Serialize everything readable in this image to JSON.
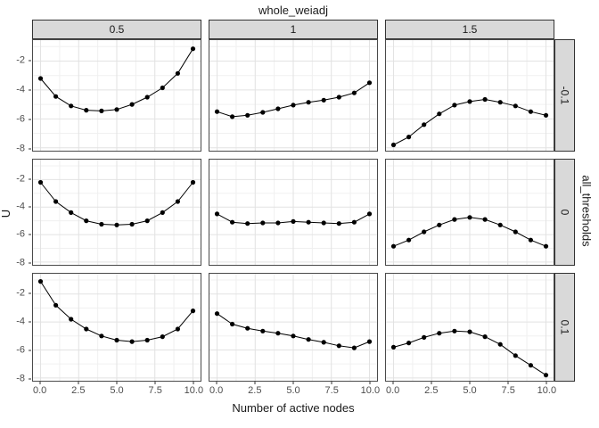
{
  "chart_data": {
    "type": "line",
    "title": "whole_weiadj",
    "xlabel": "Number of active nodes",
    "ylabel": "U",
    "facet": {
      "col_var": "whole_weiadj",
      "col_levels": [
        "0.5",
        "1",
        "1.5"
      ],
      "row_var": "all_thresholds",
      "row_levels": [
        "-0.1",
        "0",
        "0.1"
      ]
    },
    "x": [
      0,
      1,
      2,
      3,
      4,
      5,
      6,
      7,
      8,
      9,
      10
    ],
    "panels": [
      {
        "row": "-0.1",
        "col": "0.5",
        "y": [
          -3.2,
          -4.45,
          -5.1,
          -5.4,
          -5.45,
          -5.35,
          -5.0,
          -4.5,
          -3.85,
          -2.85,
          -1.15
        ]
      },
      {
        "row": "-0.1",
        "col": "1",
        "y": [
          -5.5,
          -5.85,
          -5.75,
          -5.55,
          -5.3,
          -5.05,
          -4.85,
          -4.7,
          -4.5,
          -4.2,
          -3.5
        ]
      },
      {
        "row": "-0.1",
        "col": "1.5",
        "y": [
          -7.8,
          -7.25,
          -6.4,
          -5.65,
          -5.05,
          -4.8,
          -4.65,
          -4.85,
          -5.1,
          -5.5,
          -5.75
        ]
      },
      {
        "row": "0",
        "col": "0.5",
        "y": [
          -2.2,
          -3.6,
          -4.4,
          -5.0,
          -5.25,
          -5.3,
          -5.25,
          -5.0,
          -4.4,
          -3.6,
          -2.2
        ]
      },
      {
        "row": "0",
        "col": "1",
        "y": [
          -4.5,
          -5.1,
          -5.2,
          -5.15,
          -5.15,
          -5.05,
          -5.1,
          -5.15,
          -5.2,
          -5.1,
          -4.5
        ]
      },
      {
        "row": "0",
        "col": "1.5",
        "y": [
          -6.85,
          -6.4,
          -5.8,
          -5.3,
          -4.9,
          -4.75,
          -4.9,
          -5.3,
          -5.8,
          -6.4,
          -6.85
        ]
      },
      {
        "row": "0.1",
        "col": "0.5",
        "y": [
          -1.1,
          -2.8,
          -3.8,
          -4.5,
          -5.0,
          -5.3,
          -5.4,
          -5.3,
          -5.05,
          -4.5,
          -3.2
        ]
      },
      {
        "row": "0.1",
        "col": "1",
        "y": [
          -3.4,
          -4.15,
          -4.45,
          -4.65,
          -4.8,
          -5.0,
          -5.25,
          -5.45,
          -5.7,
          -5.85,
          -5.4
        ]
      },
      {
        "row": "0.1",
        "col": "1.5",
        "y": [
          -5.8,
          -5.5,
          -5.1,
          -4.8,
          -4.65,
          -4.7,
          -5.05,
          -5.6,
          -6.4,
          -7.1,
          -7.8
        ]
      }
    ],
    "xlim": [
      -0.5,
      10.5
    ],
    "ylim": [
      -8.2,
      -0.55
    ],
    "x_ticks": [
      0,
      2.5,
      5,
      7.5,
      10
    ],
    "x_tick_labels": [
      "0.0",
      "2.5",
      "5.0",
      "7.5",
      "10.0"
    ],
    "y_ticks": [
      -2,
      -4,
      -6,
      -8
    ],
    "y_tick_labels": [
      "-2",
      "-4",
      "-6",
      "-8"
    ],
    "x_minor": [
      1.25,
      3.75,
      6.25,
      8.75
    ],
    "y_minor": [
      -1,
      -3,
      -5,
      -7
    ],
    "grid": true,
    "legend": "none"
  },
  "colors": {
    "strip_fill": "#d9d9d9",
    "strip_border": "#333333",
    "panel_border": "#4a4a4a",
    "grid_major": "#e2e2e2",
    "grid_minor": "#f0f0f0",
    "line": "#000000",
    "point": "#000000",
    "tick_text": "#4d4d4d"
  }
}
